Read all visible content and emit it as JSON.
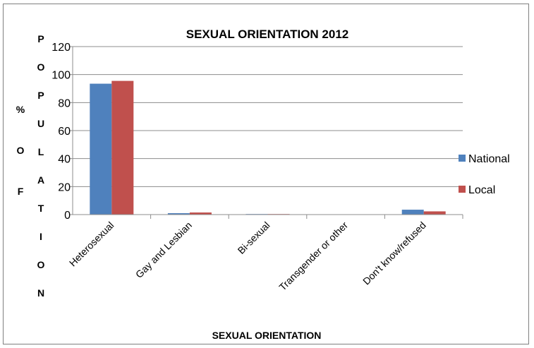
{
  "chart_data": {
    "type": "bar",
    "title": "SEXUAL ORIENTATION 2012",
    "xlabel": "SEXUAL ORIENTATION",
    "ylabel_lines": [
      "% O F",
      "P O P U L A T I O N"
    ],
    "ylim": [
      0,
      120
    ],
    "yticks": [
      0,
      20,
      40,
      60,
      80,
      100,
      120
    ],
    "grid": true,
    "legend_position": "right",
    "categories": [
      "Heterosexual",
      "Gay and Lesbian",
      "Bi-sexual",
      "Transgender or other",
      "Don't know/refused"
    ],
    "series": [
      {
        "name": "National",
        "color": "#4f81bd",
        "values": [
          93.5,
          1.0,
          0.4,
          0.2,
          3.5
        ]
      },
      {
        "name": "Local",
        "color": "#c0504d",
        "values": [
          95.5,
          1.5,
          0.4,
          0.2,
          2.3
        ]
      }
    ]
  }
}
